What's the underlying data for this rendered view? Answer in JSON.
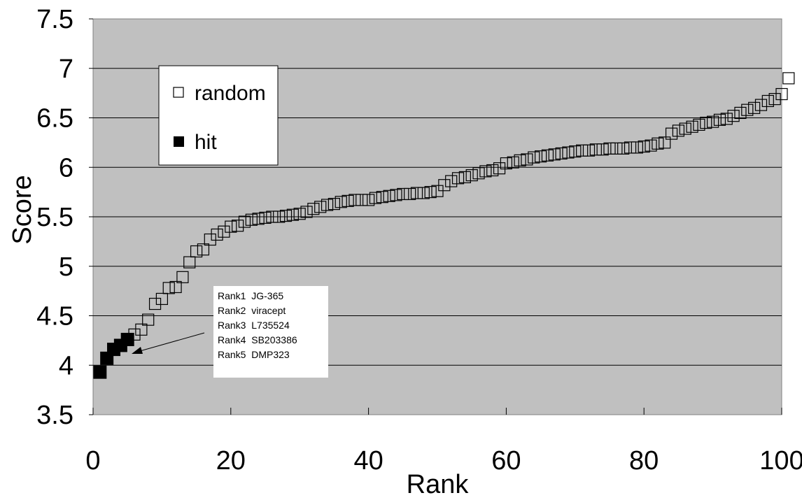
{
  "chart_data": {
    "type": "scatter",
    "title": "",
    "xlabel": "Rank",
    "ylabel": "Score",
    "xlim": [
      0,
      100
    ],
    "ylim": [
      3.5,
      7.5
    ],
    "xticks": [
      "0",
      "20",
      "40",
      "60",
      "80",
      "100"
    ],
    "yticks": [
      "3.5",
      "4",
      "4.5",
      "5",
      "5.5",
      "6",
      "6.5",
      "7",
      "7.5"
    ],
    "grid": "horizontal",
    "legend_position": "top-left",
    "plot_background": "#c0c0c0",
    "series": [
      {
        "name": "random",
        "marker": "open-square",
        "x": [
          6,
          7,
          8,
          9,
          10,
          11,
          12,
          13,
          14,
          15,
          16,
          17,
          18,
          19,
          20,
          21,
          22,
          23,
          24,
          25,
          26,
          27,
          28,
          29,
          30,
          31,
          32,
          33,
          34,
          35,
          36,
          37,
          38,
          39,
          40,
          41,
          42,
          43,
          44,
          45,
          46,
          47,
          48,
          49,
          50,
          51,
          52,
          53,
          54,
          55,
          56,
          57,
          58,
          59,
          60,
          61,
          62,
          63,
          64,
          65,
          66,
          67,
          68,
          69,
          70,
          71,
          72,
          73,
          74,
          75,
          76,
          77,
          78,
          79,
          80,
          81,
          82,
          83,
          84,
          85,
          86,
          87,
          88,
          89,
          90,
          91,
          92,
          93,
          94,
          95,
          96,
          97,
          98,
          99,
          100,
          101
        ],
        "y": [
          4.31,
          4.36,
          4.46,
          4.62,
          4.67,
          4.78,
          4.79,
          4.89,
          5.04,
          5.15,
          5.17,
          5.27,
          5.32,
          5.35,
          5.4,
          5.41,
          5.45,
          5.47,
          5.48,
          5.49,
          5.5,
          5.5,
          5.51,
          5.52,
          5.53,
          5.55,
          5.58,
          5.6,
          5.62,
          5.63,
          5.65,
          5.66,
          5.67,
          5.67,
          5.67,
          5.69,
          5.7,
          5.71,
          5.72,
          5.73,
          5.73,
          5.74,
          5.74,
          5.75,
          5.76,
          5.82,
          5.86,
          5.89,
          5.9,
          5.92,
          5.94,
          5.96,
          5.97,
          5.99,
          6.04,
          6.05,
          6.07,
          6.08,
          6.1,
          6.11,
          6.12,
          6.13,
          6.14,
          6.15,
          6.16,
          6.17,
          6.17,
          6.18,
          6.18,
          6.19,
          6.19,
          6.19,
          6.2,
          6.2,
          6.21,
          6.22,
          6.24,
          6.25,
          6.34,
          6.37,
          6.39,
          6.41,
          6.43,
          6.45,
          6.46,
          6.48,
          6.49,
          6.52,
          6.55,
          6.58,
          6.6,
          6.63,
          6.67,
          6.69,
          6.74,
          6.9
        ]
      },
      {
        "name": "hit",
        "marker": "filled-square",
        "x": [
          1,
          2,
          3,
          4,
          5
        ],
        "y": [
          3.93,
          4.07,
          4.16,
          4.2,
          4.26
        ]
      }
    ],
    "annotation": {
      "lines": [
        "Rank1  JG-365",
        "Rank2  viracept",
        "Rank3  L735524",
        "Rank4  SB203386",
        "Rank5  DMP323"
      ],
      "points_to": "hit"
    }
  }
}
